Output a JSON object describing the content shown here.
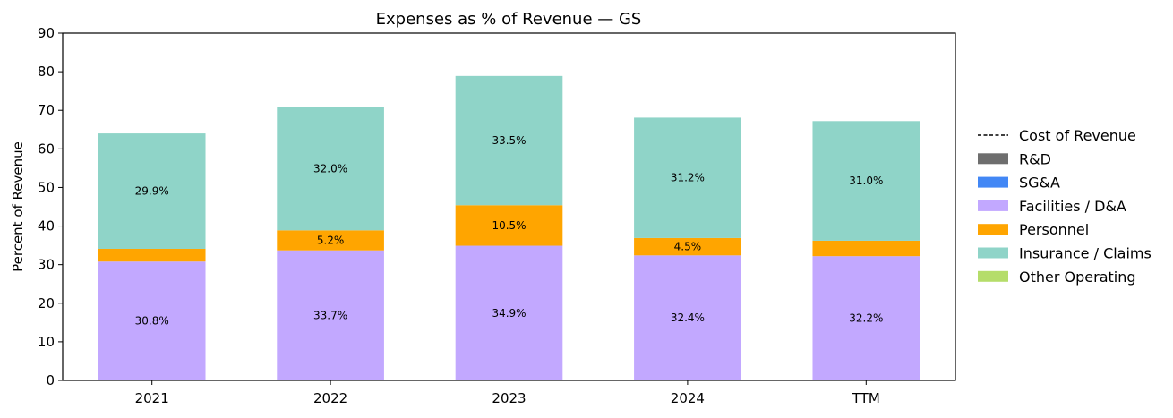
{
  "chart_data": {
    "type": "bar",
    "stacked": true,
    "title": "Expenses as % of Revenue — GS",
    "xlabel": "",
    "ylabel": "Percent of Revenue",
    "ylim": [
      0,
      90
    ],
    "yticks": [
      0,
      10,
      20,
      30,
      40,
      50,
      60,
      70,
      80,
      90
    ],
    "grid": false,
    "legend_position": "right",
    "categories": [
      "2021",
      "2022",
      "2023",
      "2024",
      "TTM"
    ],
    "series": [
      {
        "name": "Cost of Revenue",
        "marker": "dashed-line",
        "color": "#000000",
        "values": [
          0,
          0,
          0,
          0,
          0
        ]
      },
      {
        "name": "R&D",
        "color": "#6e6e6e",
        "values": [
          0,
          0,
          0,
          0,
          0
        ]
      },
      {
        "name": "SG&A",
        "color": "#4287f5",
        "values": [
          0,
          0,
          0,
          0,
          0
        ]
      },
      {
        "name": "Facilities / D&A",
        "color": "#c2a8ff",
        "values": [
          30.8,
          33.7,
          34.9,
          32.4,
          32.2
        ],
        "labels": [
          "30.8%",
          "33.7%",
          "34.9%",
          "32.4%",
          "32.2%"
        ]
      },
      {
        "name": "Personnel",
        "color": "#ffa500",
        "values": [
          3.3,
          5.2,
          10.5,
          4.5,
          4.0
        ],
        "labels": [
          "",
          "5.2%",
          "10.5%",
          "4.5%",
          ""
        ]
      },
      {
        "name": "Insurance / Claims",
        "color": "#8fd4c8",
        "values": [
          29.9,
          32.0,
          33.5,
          31.2,
          31.0
        ],
        "labels": [
          "29.9%",
          "32.0%",
          "33.5%",
          "31.2%",
          "31.0%"
        ]
      },
      {
        "name": "Other Operating",
        "color": "#b5dd6a",
        "values": [
          0,
          0,
          0,
          0,
          0
        ]
      }
    ]
  }
}
